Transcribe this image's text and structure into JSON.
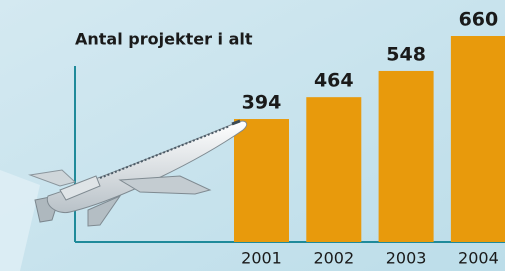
{
  "chart_data": {
    "type": "bar",
    "title": "Antal projekter i alt",
    "categories": [
      "2001",
      "2002",
      "2003",
      "2004"
    ],
    "values": [
      394,
      464,
      548,
      660
    ],
    "color": "#e89a0c"
  }
}
